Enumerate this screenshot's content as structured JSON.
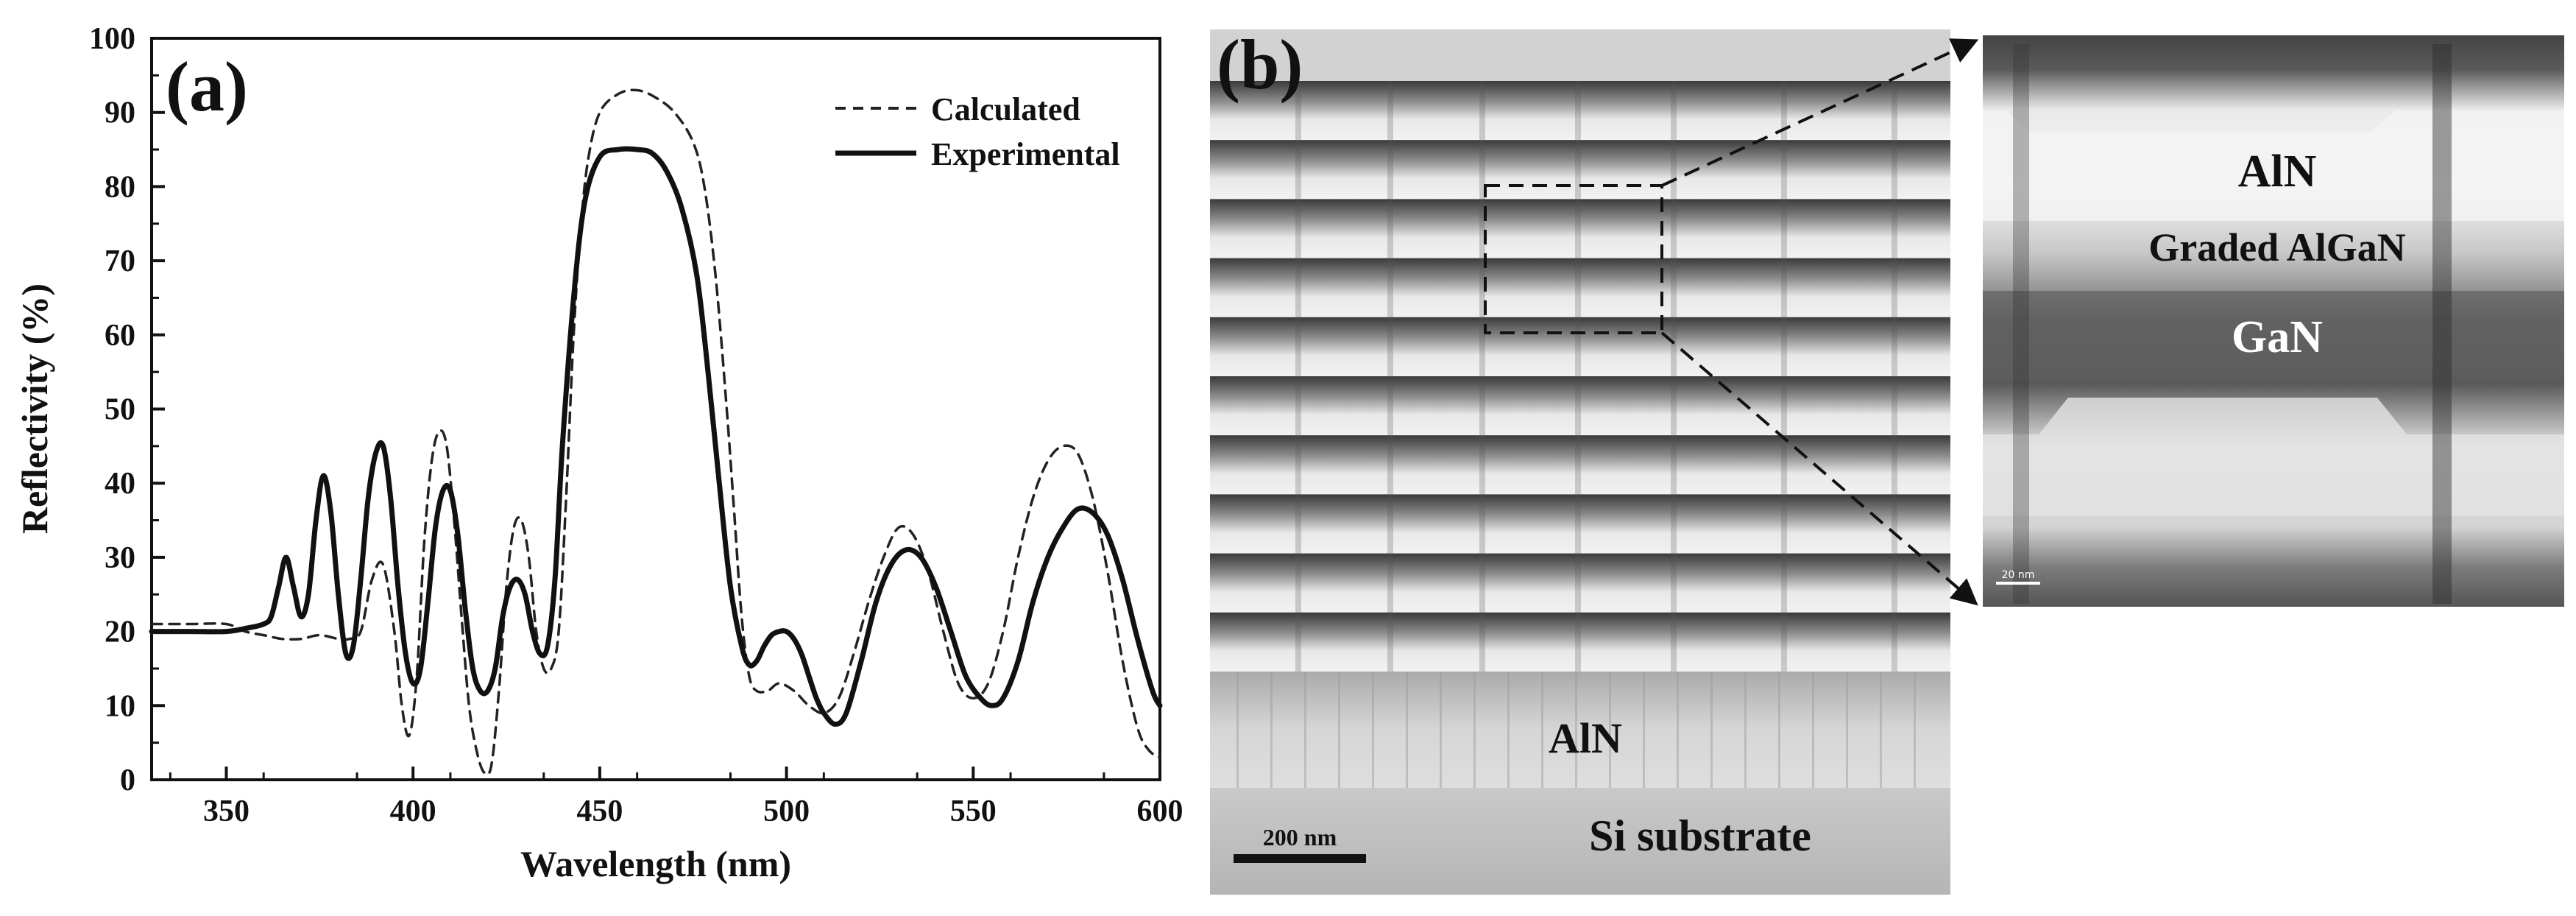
{
  "panel_a": {
    "label": "(a)"
  },
  "panel_b": {
    "label": "(b)",
    "layer_labels": {
      "aln_buffer": "AlN",
      "substrate": "Si substrate"
    },
    "scale_bar_text": "200 nm",
    "colors": {
      "tem_light": "#e9e9e9",
      "tem_dark": "#3a3a3a",
      "tem_mid": "#9a9a9a"
    }
  },
  "zoom_inset": {
    "layer_labels": {
      "top": "AlN",
      "middle": "Graded AlGaN",
      "bottom": "GaN"
    },
    "scale_bar_text": "20 nm"
  },
  "chart_data": {
    "type": "line",
    "title": "",
    "xlabel": "Wavelength (nm)",
    "ylabel": "Reflectivity (%)",
    "xlim": [
      330,
      600
    ],
    "ylim": [
      0,
      100
    ],
    "xticks": [
      350,
      400,
      450,
      500,
      550,
      600
    ],
    "yticks": [
      0,
      10,
      20,
      30,
      40,
      50,
      60,
      70,
      80,
      90,
      100
    ],
    "grid": false,
    "legend_position": "top-right",
    "series": [
      {
        "name": "Calculated",
        "style": "dashed",
        "color": "#222222",
        "x": [
          330,
          340,
          350,
          355,
          360,
          365,
          370,
          375,
          380,
          383,
          386,
          389,
          392,
          395,
          397,
          399,
          401,
          403,
          405,
          407,
          409,
          411,
          413,
          415,
          417,
          419,
          421,
          423,
          425,
          427,
          429,
          431,
          433,
          435,
          437,
          439,
          441,
          443,
          445,
          447,
          450,
          455,
          460,
          465,
          470,
          475,
          478,
          481,
          484,
          486,
          488,
          490,
          492,
          495,
          498,
          502,
          506,
          510,
          514,
          518,
          522,
          526,
          530,
          534,
          538,
          542,
          546,
          550,
          554,
          558,
          562,
          566,
          570,
          574,
          578,
          582,
          586,
          590,
          594,
          597,
          600
        ],
        "y": [
          21,
          21,
          21,
          20,
          19.5,
          19,
          19,
          19.5,
          19,
          19,
          20,
          27,
          29,
          20,
          10,
          6,
          14,
          32,
          43,
          47,
          45,
          35,
          22,
          10,
          4,
          1,
          2,
          12,
          26,
          34,
          35,
          30,
          20,
          15,
          15,
          20,
          38,
          60,
          75,
          84,
          90,
          92.5,
          93,
          92,
          90,
          86,
          80,
          68,
          50,
          36,
          22,
          14,
          12,
          12,
          13,
          12,
          10,
          9,
          11,
          17,
          24,
          30,
          34,
          33,
          28,
          20,
          13,
          11,
          13,
          20,
          30,
          38,
          43,
          45,
          44,
          38,
          28,
          16,
          7,
          4,
          3
        ]
      },
      {
        "name": "Experimental",
        "style": "solid",
        "color": "#111111",
        "x": [
          330,
          340,
          350,
          356,
          360,
          362,
          364,
          366,
          368,
          370,
          372,
          374,
          376,
          378,
          380,
          382,
          384,
          386,
          388,
          390,
          392,
          394,
          396,
          398,
          400,
          402,
          404,
          406,
          408,
          410,
          412,
          414,
          416,
          418,
          420,
          422,
          424,
          426,
          428,
          430,
          432,
          434,
          436,
          438,
          440,
          443,
          446,
          450,
          455,
          460,
          464,
          468,
          472,
          476,
          479,
          482,
          485,
          488,
          490,
          492,
          494,
          496,
          498,
          500,
          502,
          504,
          506,
          508,
          510,
          513,
          516,
          520,
          524,
          528,
          532,
          536,
          540,
          544,
          548,
          552,
          555,
          558,
          562,
          566,
          570,
          574,
          578,
          582,
          586,
          590,
          594,
          598,
          600
        ],
        "y": [
          20,
          20,
          20,
          20.5,
          21,
          22,
          26,
          30,
          26,
          22,
          25,
          35,
          41,
          36,
          25,
          17,
          18,
          27,
          38,
          44,
          45,
          38,
          26,
          17,
          13,
          15,
          24,
          34,
          39,
          39,
          33,
          23,
          15,
          12,
          12,
          15,
          22,
          26,
          27,
          25,
          20,
          17,
          18,
          27,
          45,
          65,
          78,
          84,
          85,
          85,
          84.5,
          82,
          77,
          68,
          55,
          40,
          26,
          18,
          15.5,
          16,
          18,
          19.5,
          20,
          20,
          19,
          17,
          14,
          11,
          9,
          7.5,
          9,
          16,
          24,
          29,
          31,
          30,
          26,
          20,
          14,
          11,
          10,
          11,
          16,
          24,
          30,
          34,
          36.5,
          36,
          33,
          27,
          19,
          12,
          10
        ]
      }
    ]
  }
}
